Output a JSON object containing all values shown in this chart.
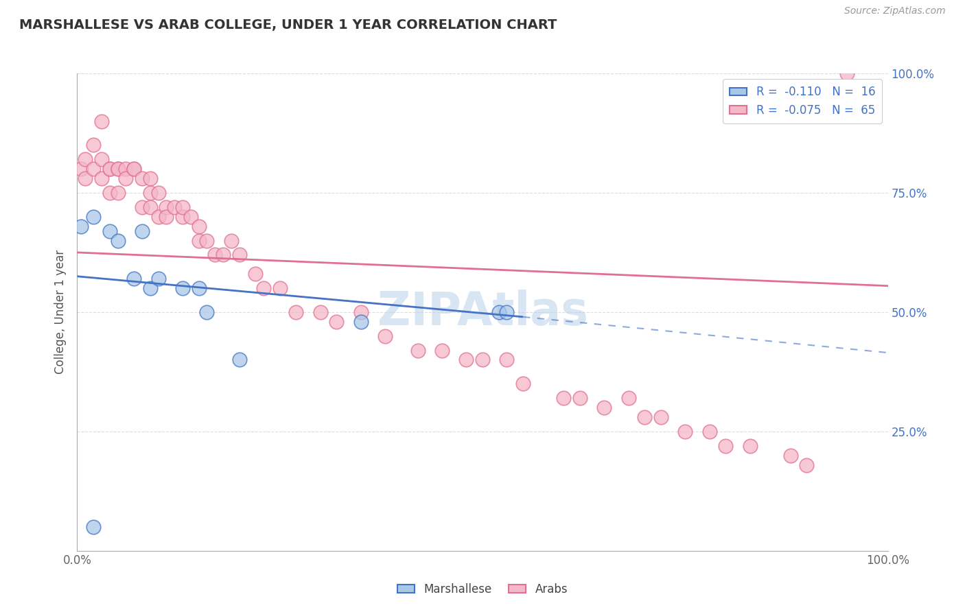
{
  "title": "MARSHALLESE VS ARAB COLLEGE, UNDER 1 YEAR CORRELATION CHART",
  "source": "Source: ZipAtlas.com",
  "ylabel": "College, Under 1 year",
  "xlim": [
    0,
    1
  ],
  "ylim": [
    0,
    1
  ],
  "legend_r_marshallese": "-0.110",
  "legend_n_marshallese": "16",
  "legend_r_arabs": "-0.075",
  "legend_n_arabs": "65",
  "marshallese_color": "#a8c8e8",
  "arabs_color": "#f4b8c8",
  "marshallese_line_color": "#4472c4",
  "arabs_line_color": "#e07090",
  "watermark": "ZIPAtlas",
  "title_color": "#333333",
  "right_label_color": "#4472c4",
  "marshallese_x": [
    0.005,
    0.02,
    0.04,
    0.05,
    0.07,
    0.08,
    0.09,
    0.1,
    0.13,
    0.15,
    0.16,
    0.2,
    0.35,
    0.52,
    0.53,
    0.02
  ],
  "marshallese_y": [
    0.68,
    0.7,
    0.67,
    0.65,
    0.57,
    0.67,
    0.55,
    0.57,
    0.55,
    0.55,
    0.5,
    0.4,
    0.48,
    0.5,
    0.5,
    0.05
  ],
  "arabs_x": [
    0.005,
    0.01,
    0.01,
    0.02,
    0.02,
    0.03,
    0.03,
    0.03,
    0.04,
    0.04,
    0.04,
    0.05,
    0.05,
    0.05,
    0.06,
    0.06,
    0.07,
    0.07,
    0.08,
    0.08,
    0.09,
    0.09,
    0.09,
    0.1,
    0.1,
    0.11,
    0.11,
    0.12,
    0.13,
    0.13,
    0.14,
    0.15,
    0.15,
    0.16,
    0.17,
    0.18,
    0.19,
    0.2,
    0.22,
    0.23,
    0.25,
    0.27,
    0.3,
    0.32,
    0.35,
    0.38,
    0.42,
    0.45,
    0.48,
    0.5,
    0.53,
    0.55,
    0.6,
    0.62,
    0.65,
    0.68,
    0.7,
    0.72,
    0.75,
    0.78,
    0.8,
    0.83,
    0.88,
    0.9,
    0.95
  ],
  "arabs_y": [
    0.8,
    0.78,
    0.82,
    0.8,
    0.85,
    0.82,
    0.78,
    0.9,
    0.8,
    0.8,
    0.75,
    0.8,
    0.8,
    0.75,
    0.8,
    0.78,
    0.8,
    0.8,
    0.78,
    0.72,
    0.78,
    0.75,
    0.72,
    0.75,
    0.7,
    0.72,
    0.7,
    0.72,
    0.7,
    0.72,
    0.7,
    0.68,
    0.65,
    0.65,
    0.62,
    0.62,
    0.65,
    0.62,
    0.58,
    0.55,
    0.55,
    0.5,
    0.5,
    0.48,
    0.5,
    0.45,
    0.42,
    0.42,
    0.4,
    0.4,
    0.4,
    0.35,
    0.32,
    0.32,
    0.3,
    0.32,
    0.28,
    0.28,
    0.25,
    0.25,
    0.22,
    0.22,
    0.2,
    0.18,
    1.0
  ],
  "trend_marsh_x0": 0.0,
  "trend_marsh_y0": 0.575,
  "trend_marsh_x1": 0.55,
  "trend_marsh_y1": 0.49,
  "trend_marsh_dash_x0": 0.55,
  "trend_marsh_dash_y0": 0.49,
  "trend_marsh_dash_x1": 1.0,
  "trend_marsh_dash_y1": 0.415,
  "trend_arab_x0": 0.0,
  "trend_arab_y0": 0.625,
  "trend_arab_x1": 1.0,
  "trend_arab_y1": 0.555
}
